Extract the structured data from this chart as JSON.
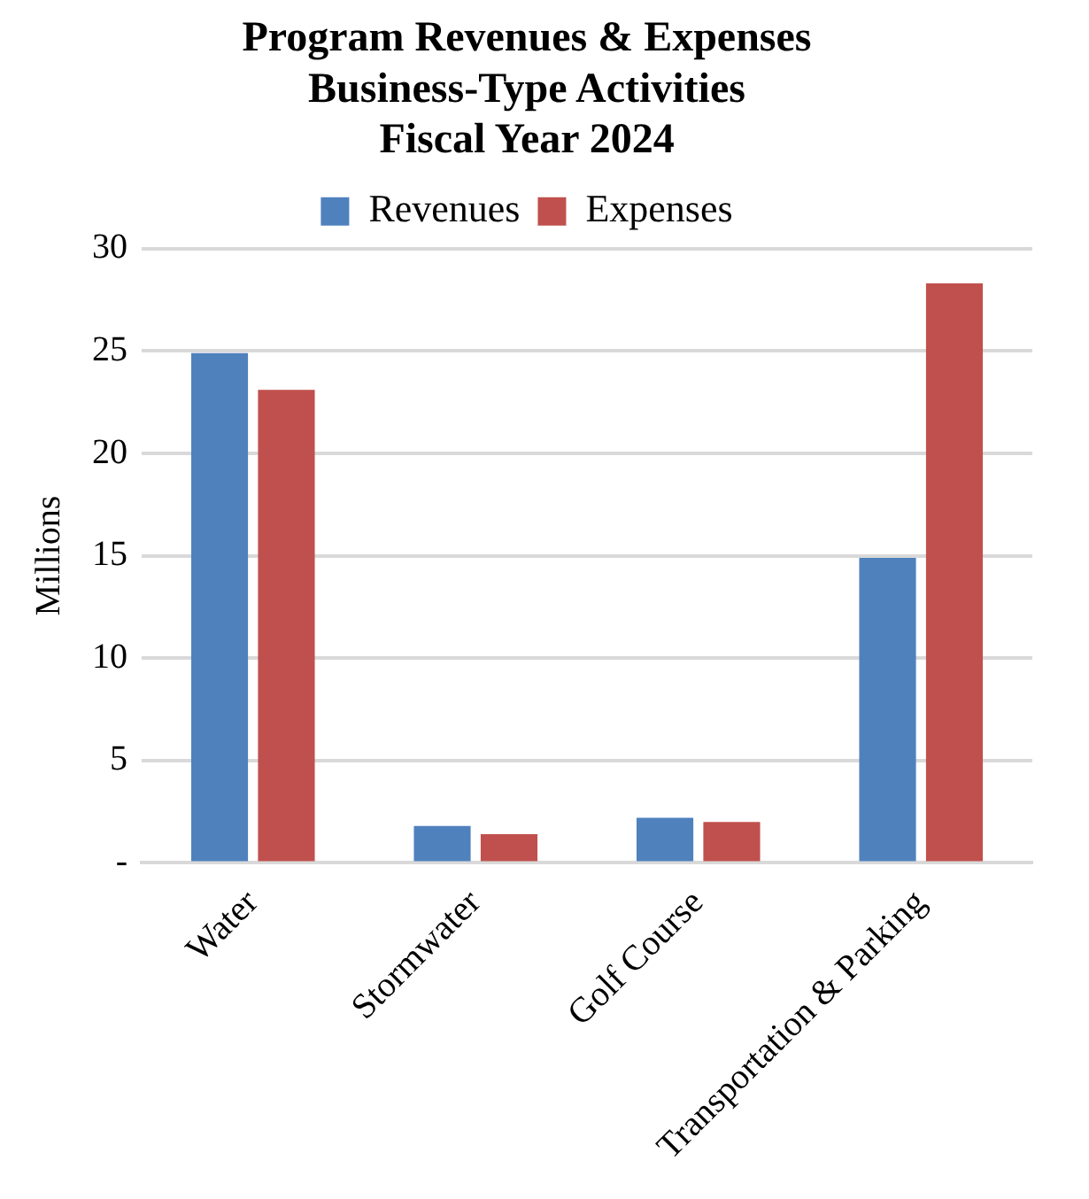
{
  "chart_data": {
    "type": "bar",
    "title": "Program Revenues & Expenses\nBusiness-Type Activities\nFiscal Year 2024",
    "ylabel": "Millions",
    "categories": [
      "Water",
      "Stormwater",
      "Golf Course",
      "Transportation & Parking"
    ],
    "series": [
      {
        "name": "Revenues",
        "color": "#4f81bd",
        "values": [
          24.9,
          1.8,
          2.2,
          14.9
        ]
      },
      {
        "name": "Expenses",
        "color": "#c0504d",
        "values": [
          23.1,
          1.4,
          2.0,
          28.3
        ]
      }
    ],
    "ylim": [
      0,
      30
    ],
    "yticks": [
      {
        "value": 0,
        "label": "-"
      },
      5,
      10,
      15,
      20,
      25,
      30
    ],
    "grid": "y",
    "legend": "top"
  }
}
